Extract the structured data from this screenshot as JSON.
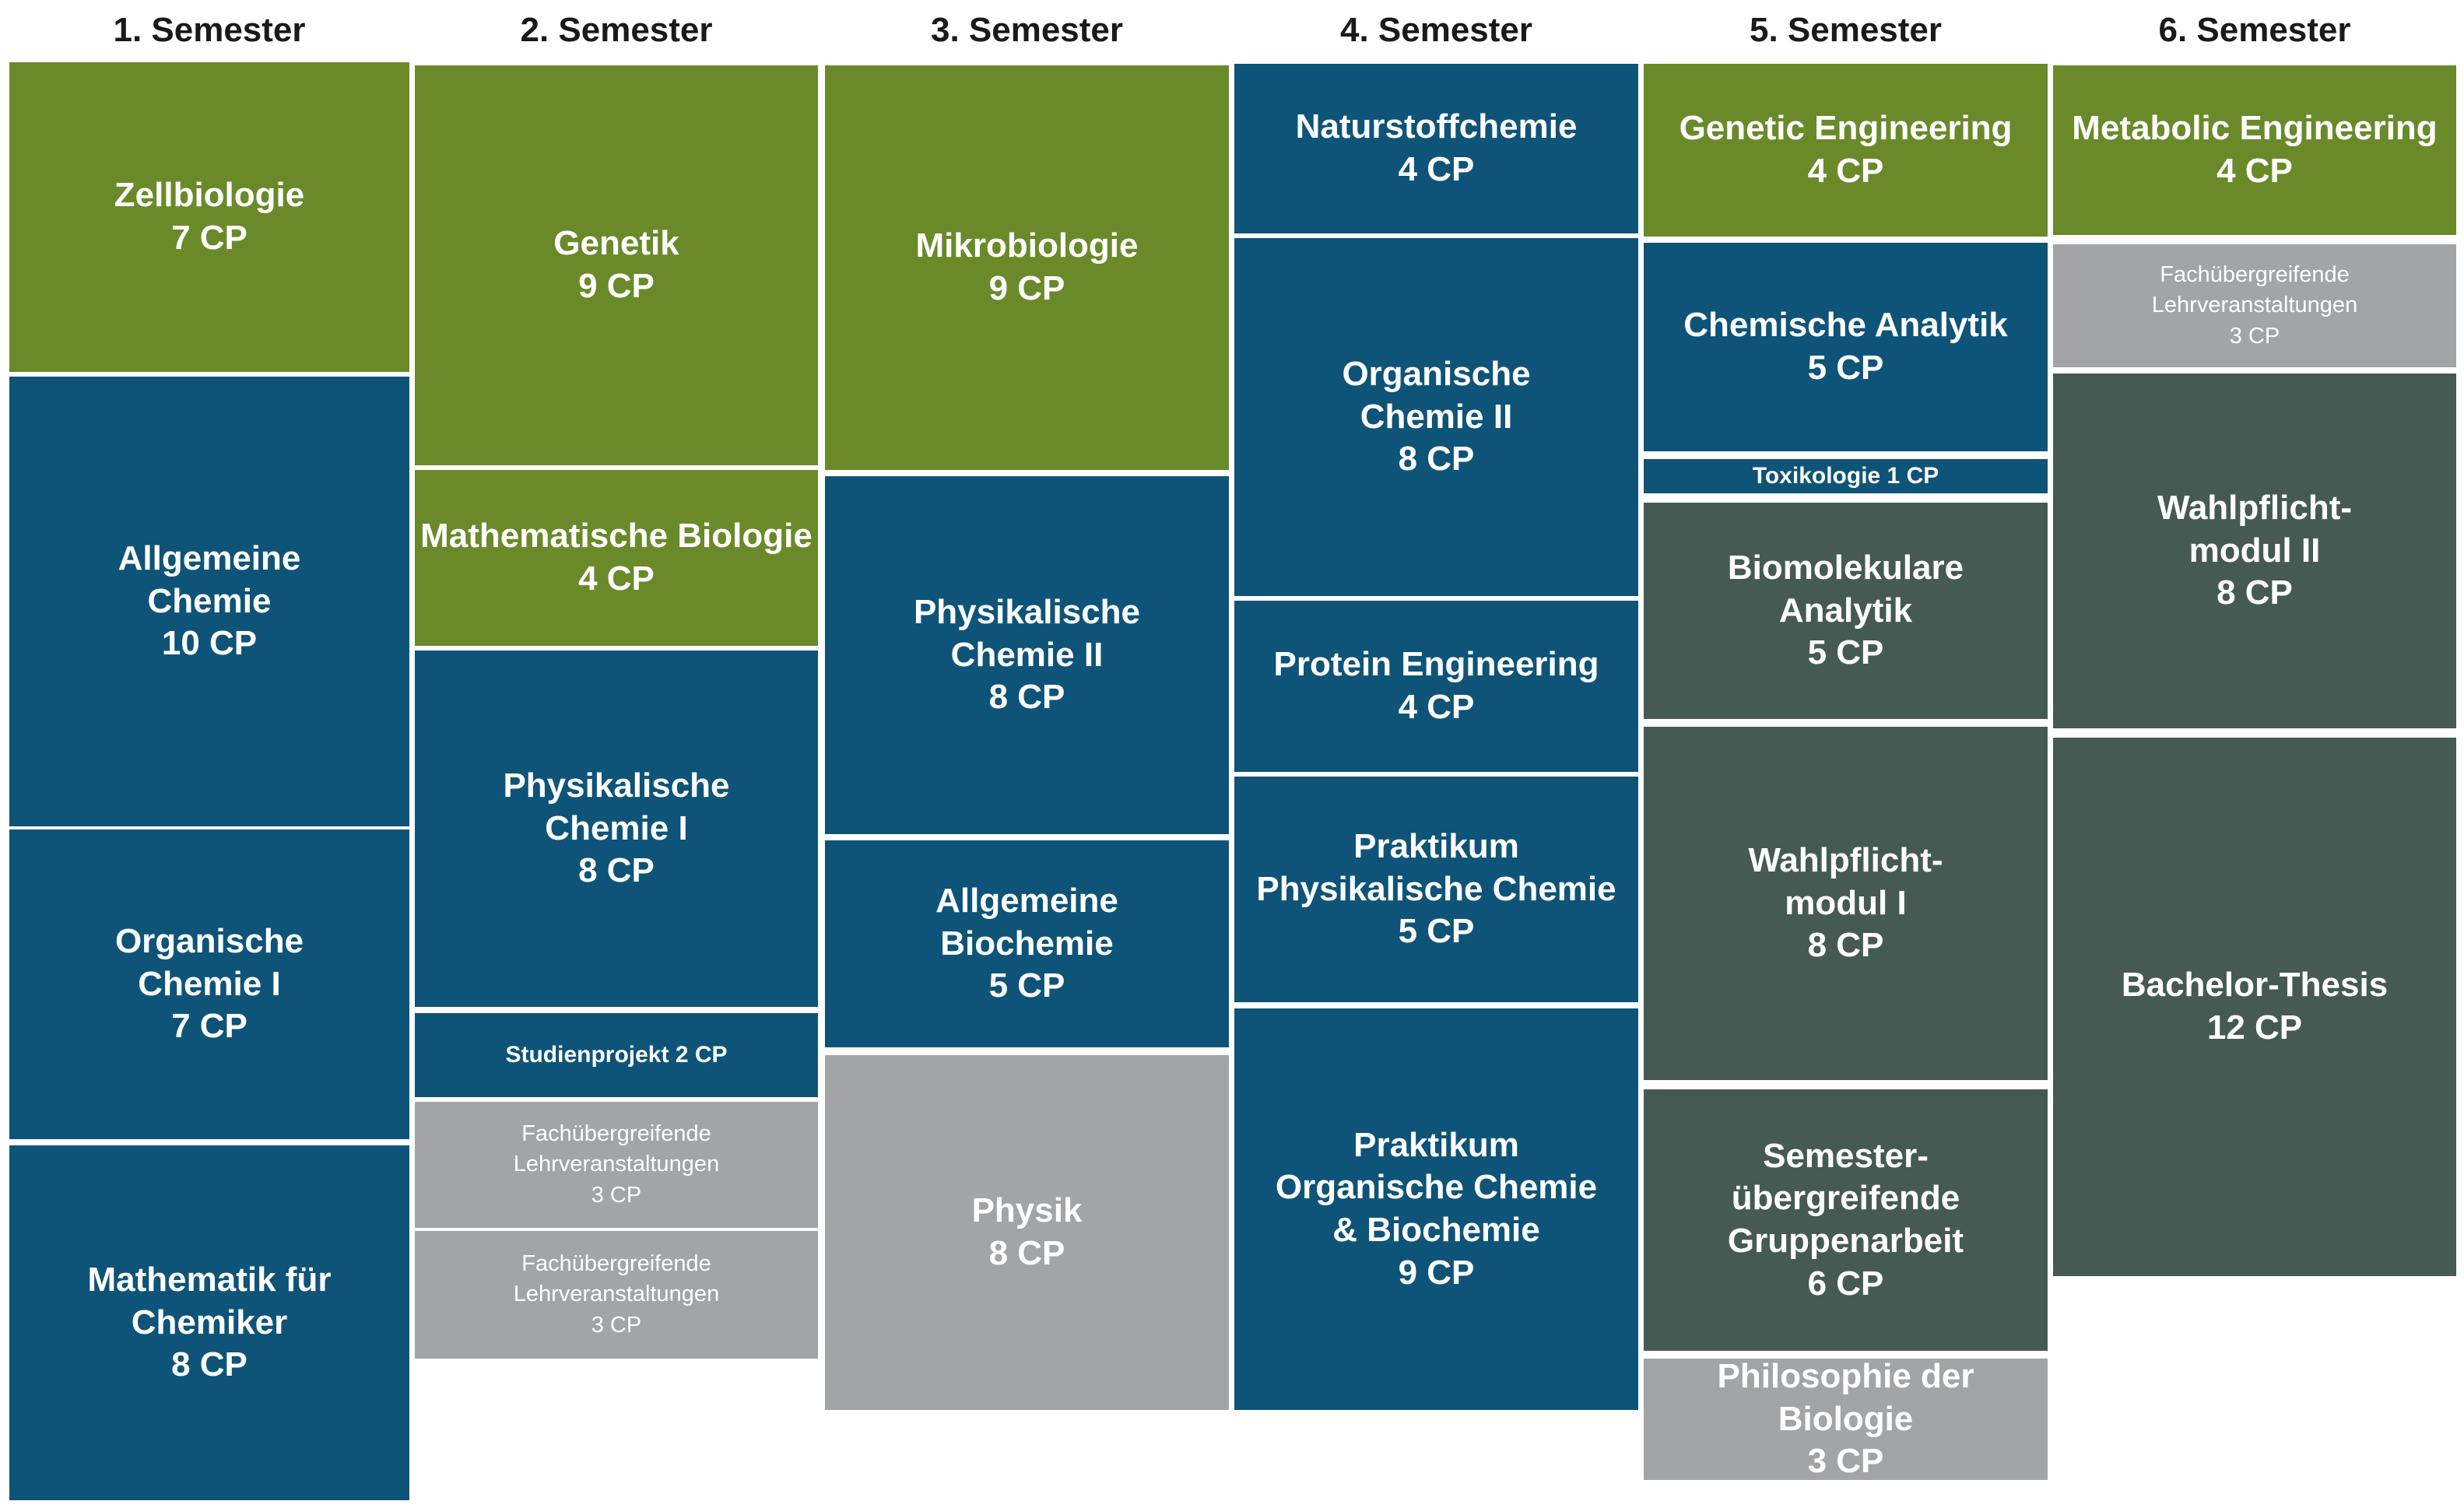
{
  "colors": {
    "t-bio": "#6a8a2a",
    "t-chem": "#0e5478",
    "t-gray": "#a3a4a6",
    "t-dark": "#455a53"
  },
  "semesters": [
    {
      "title": "1. Semester",
      "modules": [
        {
          "name": "Zellbiologie",
          "cp": "7 CP",
          "category": "t-bio"
        },
        {
          "name": "Allgemeine\nChemie",
          "cp": "10 CP",
          "category": "t-chem"
        },
        {
          "name": "Organische\nChemie I",
          "cp": "7 CP",
          "category": "t-chem"
        },
        {
          "name": "Mathematik für\nChemiker",
          "cp": "8 CP",
          "category": "t-chem"
        }
      ]
    },
    {
      "title": "2. Semester",
      "modules": [
        {
          "name": "Genetik",
          "cp": "9 CP",
          "category": "t-bio"
        },
        {
          "name": "Mathematische Biologie",
          "cp": "4 CP",
          "category": "t-bio"
        },
        {
          "name": "Physikalische\nChemie I",
          "cp": "8 CP",
          "category": "t-chem"
        },
        {
          "name": "Studienprojekt 2 CP",
          "cp": "",
          "category": "t-chem"
        },
        {
          "name": "Fachübergreifende\nLehrveranstaltungen",
          "cp": "3 CP",
          "category": "t-gray"
        },
        {
          "name": "Fachübergreifende\nLehrveranstaltungen",
          "cp": "3 CP",
          "category": "t-gray"
        }
      ]
    },
    {
      "title": "3. Semester",
      "modules": [
        {
          "name": "Mikrobiologie",
          "cp": "9 CP",
          "category": "t-bio"
        },
        {
          "name": "Physikalische\nChemie II",
          "cp": "8 CP",
          "category": "t-chem"
        },
        {
          "name": "Allgemeine\nBiochemie",
          "cp": "5 CP",
          "category": "t-chem"
        },
        {
          "name": "Physik",
          "cp": "8 CP",
          "category": "t-gray"
        }
      ]
    },
    {
      "title": "4. Semester",
      "modules": [
        {
          "name": "Naturstoffchemie",
          "cp": "4 CP",
          "category": "t-chem"
        },
        {
          "name": "Organische\nChemie II",
          "cp": "8 CP",
          "category": "t-chem"
        },
        {
          "name": "Protein Engineering",
          "cp": "4 CP",
          "category": "t-chem"
        },
        {
          "name": "Praktikum\nPhysikalische Chemie",
          "cp": "5 CP",
          "category": "t-chem"
        },
        {
          "name": "Praktikum\nOrganische Chemie\n& Biochemie",
          "cp": "9 CP",
          "category": "t-chem"
        }
      ]
    },
    {
      "title": "5. Semester",
      "modules": [
        {
          "name": "Genetic Engineering",
          "cp": "4 CP",
          "category": "t-bio"
        },
        {
          "name": "Chemische Analytik",
          "cp": "5 CP",
          "category": "t-chem"
        },
        {
          "name": "Toxikologie 1 CP",
          "cp": "",
          "category": "t-chem"
        },
        {
          "name": "Biomolekulare\nAnalytik",
          "cp": "5 CP",
          "category": "t-dark"
        },
        {
          "name": "Wahlpflicht-\nmodul I",
          "cp": "8 CP",
          "category": "t-dark"
        },
        {
          "name": "Semester-\nübergreifende\nGruppenarbeit",
          "cp": "6 CP",
          "category": "t-dark"
        },
        {
          "name": "Philosophie der Biologie",
          "cp": "3 CP",
          "category": "t-gray"
        }
      ]
    },
    {
      "title": "6. Semester",
      "modules": [
        {
          "name": "Metabolic Engineering",
          "cp": "4 CP",
          "category": "t-bio"
        },
        {
          "name": "Fachübergreifende\nLehrveranstaltungen",
          "cp": "3 CP",
          "category": "t-gray"
        },
        {
          "name": "Wahlpflicht-\nmodul II",
          "cp": "8 CP",
          "category": "t-dark"
        },
        {
          "name": "Bachelor-Thesis",
          "cp": "12 CP",
          "category": "t-dark"
        }
      ]
    }
  ]
}
